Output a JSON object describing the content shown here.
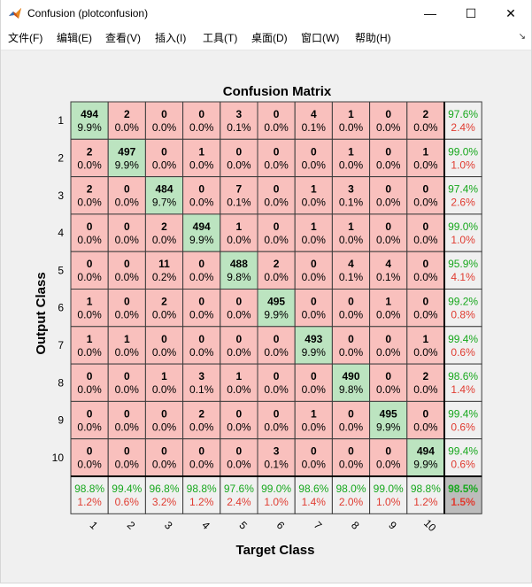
{
  "window": {
    "title": "Confusion (plotconfusion)",
    "minimize_glyph": "—",
    "maximize_glyph": "☐",
    "close_glyph": "✕"
  },
  "menu": [
    {
      "label": "文件(F)"
    },
    {
      "label": "编辑(E)"
    },
    {
      "label": "查看(V)"
    },
    {
      "label": "插入(I)"
    },
    {
      "label": "工具(T)"
    },
    {
      "label": "桌面(D)"
    },
    {
      "label": "窗口(W)"
    },
    {
      "label": "帮助(H)"
    }
  ],
  "colors": {
    "correct": "#bce4c0",
    "incorrect": "#f9c0bd",
    "summary": "#f0f0f0",
    "overall": "#bcbcbc",
    "green_text": "#18a81e",
    "red_text": "#e03c31"
  },
  "chart_data": {
    "type": "heatmap",
    "title": "Confusion Matrix",
    "xlabel": "Target Class",
    "ylabel": "Output Class",
    "classes": [
      "1",
      "2",
      "3",
      "4",
      "5",
      "6",
      "7",
      "8",
      "9",
      "10"
    ],
    "counts": [
      [
        494,
        2,
        0,
        0,
        3,
        0,
        4,
        1,
        0,
        2
      ],
      [
        2,
        497,
        0,
        1,
        0,
        0,
        0,
        1,
        0,
        1
      ],
      [
        2,
        0,
        484,
        0,
        7,
        0,
        1,
        3,
        0,
        0
      ],
      [
        0,
        0,
        2,
        494,
        1,
        0,
        1,
        1,
        0,
        0
      ],
      [
        0,
        0,
        11,
        0,
        488,
        2,
        0,
        4,
        4,
        0
      ],
      [
        1,
        0,
        2,
        0,
        0,
        495,
        0,
        0,
        1,
        0
      ],
      [
        1,
        1,
        0,
        0,
        0,
        0,
        493,
        0,
        0,
        1
      ],
      [
        0,
        0,
        1,
        3,
        1,
        0,
        0,
        490,
        0,
        2
      ],
      [
        0,
        0,
        0,
        2,
        0,
        0,
        1,
        0,
        495,
        0
      ],
      [
        0,
        0,
        0,
        0,
        0,
        3,
        0,
        0,
        0,
        494
      ]
    ],
    "percents": [
      [
        "9.9%",
        "0.0%",
        "0.0%",
        "0.0%",
        "0.1%",
        "0.0%",
        "0.1%",
        "0.0%",
        "0.0%",
        "0.0%"
      ],
      [
        "0.0%",
        "9.9%",
        "0.0%",
        "0.0%",
        "0.0%",
        "0.0%",
        "0.0%",
        "0.0%",
        "0.0%",
        "0.0%"
      ],
      [
        "0.0%",
        "0.0%",
        "9.7%",
        "0.0%",
        "0.1%",
        "0.0%",
        "0.0%",
        "0.1%",
        "0.0%",
        "0.0%"
      ],
      [
        "0.0%",
        "0.0%",
        "0.0%",
        "9.9%",
        "0.0%",
        "0.0%",
        "0.0%",
        "0.0%",
        "0.0%",
        "0.0%"
      ],
      [
        "0.0%",
        "0.0%",
        "0.2%",
        "0.0%",
        "9.8%",
        "0.0%",
        "0.0%",
        "0.1%",
        "0.1%",
        "0.0%"
      ],
      [
        "0.0%",
        "0.0%",
        "0.0%",
        "0.0%",
        "0.0%",
        "9.9%",
        "0.0%",
        "0.0%",
        "0.0%",
        "0.0%"
      ],
      [
        "0.0%",
        "0.0%",
        "0.0%",
        "0.0%",
        "0.0%",
        "0.0%",
        "9.9%",
        "0.0%",
        "0.0%",
        "0.0%"
      ],
      [
        "0.0%",
        "0.0%",
        "0.0%",
        "0.1%",
        "0.0%",
        "0.0%",
        "0.0%",
        "9.8%",
        "0.0%",
        "0.0%"
      ],
      [
        "0.0%",
        "0.0%",
        "0.0%",
        "0.0%",
        "0.0%",
        "0.0%",
        "0.0%",
        "0.0%",
        "9.9%",
        "0.0%"
      ],
      [
        "0.0%",
        "0.0%",
        "0.0%",
        "0.0%",
        "0.0%",
        "0.1%",
        "0.0%",
        "0.0%",
        "0.0%",
        "9.9%"
      ]
    ],
    "row_summary": [
      [
        "97.6%",
        "2.4%"
      ],
      [
        "99.0%",
        "1.0%"
      ],
      [
        "97.4%",
        "2.6%"
      ],
      [
        "99.0%",
        "1.0%"
      ],
      [
        "95.9%",
        "4.1%"
      ],
      [
        "99.2%",
        "0.8%"
      ],
      [
        "99.4%",
        "0.6%"
      ],
      [
        "98.6%",
        "1.4%"
      ],
      [
        "99.4%",
        "0.6%"
      ],
      [
        "99.4%",
        "0.6%"
      ]
    ],
    "col_summary": [
      [
        "98.8%",
        "1.2%"
      ],
      [
        "99.4%",
        "0.6%"
      ],
      [
        "96.8%",
        "3.2%"
      ],
      [
        "98.8%",
        "1.2%"
      ],
      [
        "97.6%",
        "2.4%"
      ],
      [
        "99.0%",
        "1.0%"
      ],
      [
        "98.6%",
        "1.4%"
      ],
      [
        "98.0%",
        "2.0%"
      ],
      [
        "99.0%",
        "1.0%"
      ],
      [
        "98.8%",
        "1.2%"
      ]
    ],
    "overall": [
      "98.5%",
      "1.5%"
    ]
  }
}
